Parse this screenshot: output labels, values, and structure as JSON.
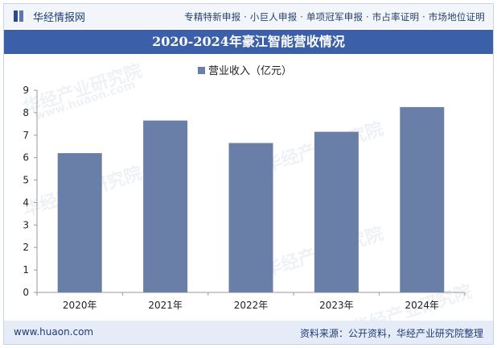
{
  "header": {
    "brand_name": "华经情报网",
    "nav_text": "专精特新申报 · 小巨人申报 · 单项冠军申报 · 市占率证明 · 市场地位证明"
  },
  "chart_title": "2020-2024年豪江智能营收情况",
  "footer": {
    "url": "www.huaon.com",
    "source": "资料来源：公开资料，华经产业研究院整理"
  },
  "watermarks": [
    "华经产业研究院",
    "华经产业研究院",
    "华经产业研究院",
    "华经产业研究院",
    "华经产业研究院"
  ],
  "watermark_url": "www.huaon.com",
  "colors": {
    "bar": "#6a7fa8",
    "title_bg": "#3b5fa8",
    "axis": "#999999"
  },
  "chart_data": {
    "type": "bar",
    "title": "2020-2024年豪江智能营收情况",
    "categories": [
      "2020年",
      "2021年",
      "2022年",
      "2023年",
      "2024年"
    ],
    "series": [
      {
        "name": "营业收入（亿元）",
        "values": [
          6.2,
          7.65,
          6.65,
          7.15,
          8.25
        ]
      }
    ],
    "ylim": [
      0,
      9
    ],
    "yticks": [
      0,
      1,
      2,
      3,
      4,
      5,
      6,
      7,
      8,
      9
    ],
    "xlabel": "",
    "ylabel": "",
    "legend_position": "top-center"
  }
}
